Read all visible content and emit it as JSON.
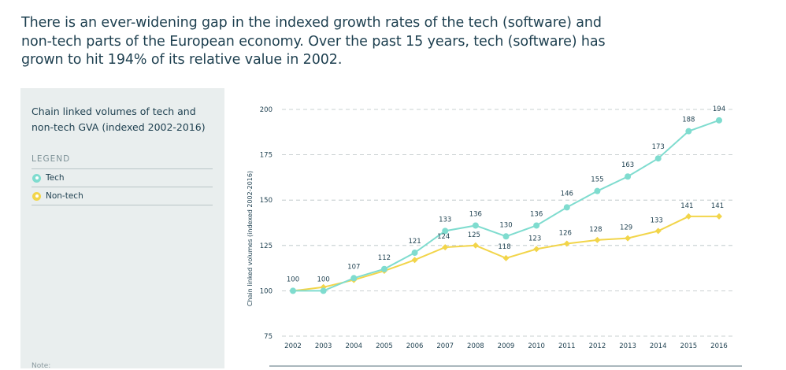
{
  "headline": "There is an ever-widening gap in the indexed growth rates of the tech (software) and non-tech parts of the European economy. Over the past 15 years, tech (software) has grown to hit 194% of its relative value in 2002.",
  "sidebar": {
    "title": "Chain linked volumes of tech and non-tech GVA (indexed 2002-2016)",
    "legend_heading": "LEGEND",
    "legend_items": [
      {
        "label": "Tech",
        "color": "#7fdccf"
      },
      {
        "label": "Non-tech",
        "color": "#f2d54a"
      }
    ],
    "note_label": "Note:"
  },
  "chart_data": {
    "type": "line",
    "ylabel": "Chain linked volumes (indexed 2002-2016)",
    "xlabel": "",
    "ylim": [
      75,
      200
    ],
    "yticks": [
      75,
      100,
      125,
      150,
      175,
      200
    ],
    "grid": true,
    "categories": [
      "2002",
      "2003",
      "2004",
      "2005",
      "2006",
      "2007",
      "2008",
      "2009",
      "2010",
      "2011",
      "2012",
      "2013",
      "2014",
      "2015",
      "2016"
    ],
    "series": [
      {
        "name": "Tech",
        "color": "#7fdccf",
        "values": [
          100,
          100,
          107,
          112,
          121,
          133,
          136,
          130,
          136,
          146,
          155,
          163,
          173,
          188,
          194
        ]
      },
      {
        "name": "Non-tech",
        "color": "#f2d54a",
        "values": [
          100,
          102,
          106,
          111,
          117,
          124,
          125,
          118,
          123,
          126,
          128,
          129,
          133,
          141,
          141
        ]
      }
    ],
    "data_labels": [
      {
        "series": "Tech",
        "values": [
          100,
          100,
          107,
          112,
          121,
          133,
          136,
          130,
          136,
          146,
          155,
          163,
          173,
          188,
          194
        ]
      },
      {
        "series": "Non-tech",
        "values": [
          null,
          null,
          null,
          null,
          null,
          124,
          125,
          118,
          123,
          126,
          128,
          129,
          133,
          141,
          141
        ]
      }
    ]
  }
}
